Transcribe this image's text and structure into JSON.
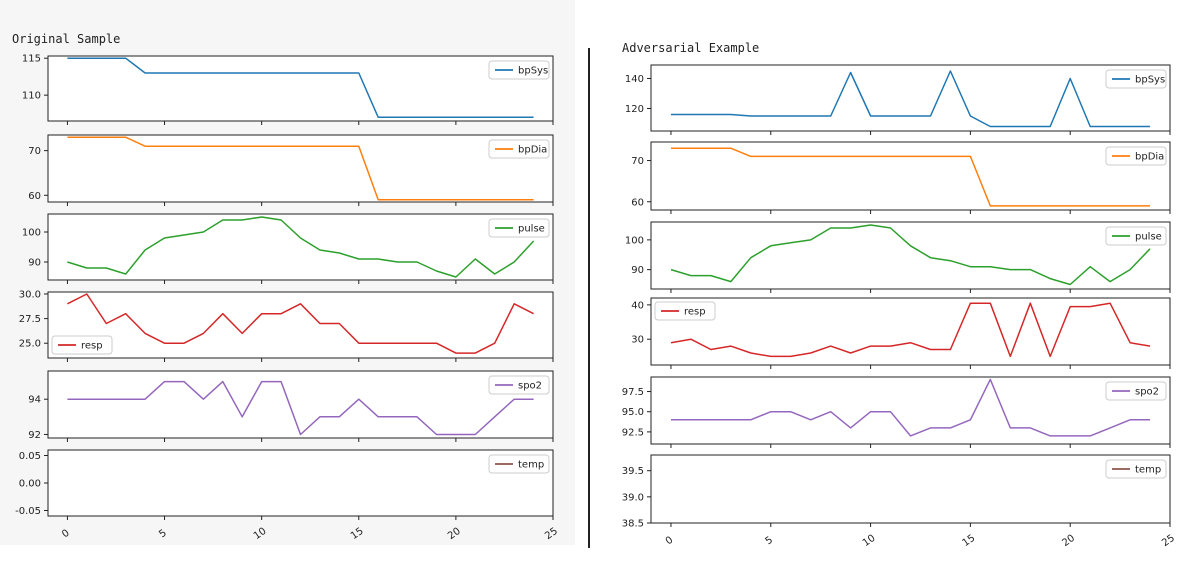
{
  "panels": {
    "left_title": "Original Sample",
    "right_title": "Adversarial Example"
  },
  "chart_data": [
    {
      "title": "Original Sample",
      "type": "line",
      "x": [
        0,
        1,
        2,
        3,
        4,
        5,
        6,
        7,
        8,
        9,
        10,
        11,
        12,
        13,
        14,
        15,
        16,
        17,
        18,
        19,
        20,
        21,
        22,
        23,
        24
      ],
      "x_ticks": [
        "0",
        "5",
        "10",
        "15",
        "20",
        "25"
      ],
      "xlim": [
        -1,
        25
      ],
      "subplots": [
        {
          "name": "bpSys",
          "color": "#1f77b4",
          "legend": "top-right",
          "ylim": [
            106.5,
            115.3
          ],
          "yticks": [
            "110",
            "115"
          ],
          "values": [
            115,
            115,
            115,
            115,
            113,
            113,
            113,
            113,
            113,
            113,
            113,
            113,
            113,
            113,
            113,
            113,
            107,
            107,
            107,
            107,
            107,
            107,
            107,
            107,
            107
          ]
        },
        {
          "name": "bpDia",
          "color": "#ff7f0e",
          "legend": "top-right",
          "ylim": [
            58.5,
            73.5
          ],
          "yticks": [
            "60",
            "70"
          ],
          "values": [
            73,
            73,
            73,
            73,
            71,
            71,
            71,
            71,
            71,
            71,
            71,
            71,
            71,
            71,
            71,
            71,
            59,
            59,
            59,
            59,
            59,
            59,
            59,
            59,
            59
          ]
        },
        {
          "name": "pulse",
          "color": "#2ca02c",
          "legend": "top-right",
          "ylim": [
            84,
            106
          ],
          "yticks": [
            "90",
            "100"
          ],
          "values": [
            90,
            88,
            88,
            86,
            94,
            98,
            99,
            100,
            104,
            104,
            105,
            104,
            98,
            94,
            93,
            91,
            91,
            90,
            90,
            87,
            85,
            91,
            86,
            90,
            97
          ]
        },
        {
          "name": "resp",
          "color": "#d62728",
          "legend": "bottom-left",
          "ylim": [
            23.5,
            30.2
          ],
          "yticks": [
            "25.0",
            "27.5",
            "30.0"
          ],
          "values": [
            29,
            30,
            27,
            28,
            26,
            25,
            25,
            26,
            28,
            26,
            28,
            28,
            29,
            27,
            27,
            25,
            25,
            25,
            25,
            25,
            24,
            24,
            25,
            29,
            28
          ]
        },
        {
          "name": "spo2",
          "color": "#9467bd",
          "legend": "top-right",
          "ylim": [
            91.8,
            95.6
          ],
          "yticks": [
            "92",
            "94"
          ],
          "values": [
            94,
            94,
            94,
            94,
            94,
            95,
            95,
            94,
            95,
            93,
            95,
            95,
            92,
            93,
            93,
            94,
            93,
            93,
            93,
            92,
            92,
            92,
            93,
            94,
            94
          ]
        },
        {
          "name": "temp",
          "color": "#8c564b",
          "legend": "top-right",
          "ylim": [
            -0.06,
            0.06
          ],
          "yticks": [
            "-0.05",
            "0.00",
            "0.05"
          ],
          "values": []
        }
      ]
    },
    {
      "title": "Adversarial Example",
      "type": "line",
      "x": [
        0,
        1,
        2,
        3,
        4,
        5,
        6,
        7,
        8,
        9,
        10,
        11,
        12,
        13,
        14,
        15,
        16,
        17,
        18,
        19,
        20,
        21,
        22,
        23,
        24
      ],
      "x_ticks": [
        "0",
        "5",
        "10",
        "15",
        "20",
        "25"
      ],
      "xlim": [
        -1,
        25
      ],
      "subplots": [
        {
          "name": "bpSys",
          "color": "#1f77b4",
          "legend": "top-right",
          "ylim": [
            105,
            149
          ],
          "yticks": [
            "120",
            "140"
          ],
          "values": [
            116,
            116,
            116,
            116,
            115,
            115,
            115,
            115,
            115,
            144,
            115,
            115,
            115,
            115,
            145,
            115,
            108,
            108,
            108,
            108,
            140,
            108,
            108,
            108,
            108
          ]
        },
        {
          "name": "bpDia",
          "color": "#ff7f0e",
          "legend": "top-right",
          "ylim": [
            58,
            74.5
          ],
          "yticks": [
            "60",
            "70"
          ],
          "values": [
            73,
            73,
            73,
            73,
            71,
            71,
            71,
            71,
            71,
            71,
            71,
            71,
            71,
            71,
            71,
            71,
            59,
            59,
            59,
            59,
            59,
            59,
            59,
            59,
            59
          ]
        },
        {
          "name": "pulse",
          "color": "#2ca02c",
          "legend": "top-right",
          "ylim": [
            83.5,
            106
          ],
          "yticks": [
            "90",
            "100"
          ],
          "values": [
            90,
            88,
            88,
            86,
            94,
            98,
            99,
            100,
            104,
            104,
            105,
            104,
            98,
            94,
            93,
            91,
            91,
            90,
            90,
            87,
            85,
            91,
            86,
            90,
            97
          ]
        },
        {
          "name": "resp",
          "color": "#d62728",
          "legend": "top-left",
          "ylim": [
            22.5,
            42
          ],
          "yticks": [
            "30",
            "40"
          ],
          "values": [
            29,
            30,
            27,
            28,
            26,
            25,
            25,
            26,
            28,
            26,
            28,
            28,
            29,
            27,
            27,
            40.5,
            40.5,
            25,
            40.5,
            25,
            39.5,
            39.5,
            40.5,
            29,
            28
          ]
        },
        {
          "name": "spo2",
          "color": "#9467bd",
          "legend": "top-right",
          "ylim": [
            91,
            99.3
          ],
          "yticks": [
            "92.5",
            "95.0",
            "97.5"
          ],
          "values": [
            94,
            94,
            94,
            94,
            94,
            95,
            95,
            94,
            95,
            93,
            95,
            95,
            92,
            93,
            93,
            94,
            99,
            93,
            93,
            92,
            92,
            92,
            93,
            94,
            94
          ]
        },
        {
          "name": "temp",
          "color": "#8c564b",
          "legend": "top-right",
          "ylim": [
            38.5,
            39.8
          ],
          "yticks": [
            "38.5",
            "39.0",
            "39.5"
          ],
          "values": []
        }
      ]
    }
  ]
}
